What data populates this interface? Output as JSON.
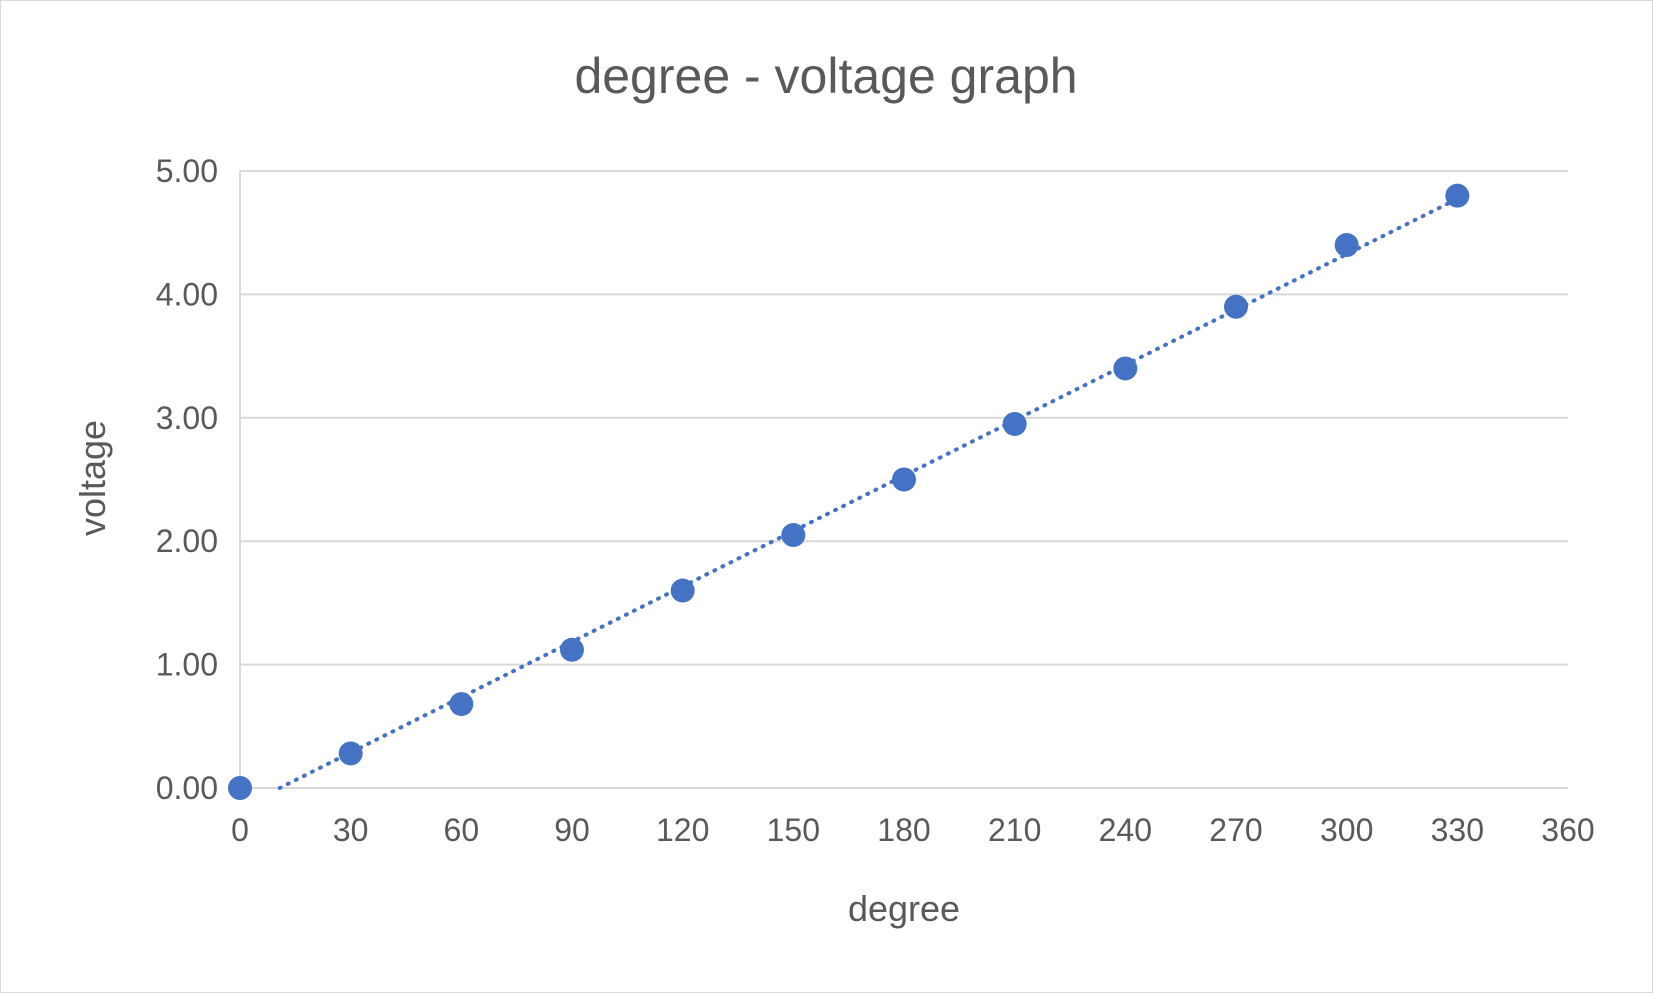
{
  "chart_data": {
    "type": "scatter",
    "title": "degree - voltage graph",
    "xlabel": "degree",
    "ylabel": "voltage",
    "xlim": [
      0,
      360
    ],
    "ylim": [
      0,
      5
    ],
    "x_ticks": [
      "0",
      "30",
      "60",
      "90",
      "120",
      "150",
      "180",
      "210",
      "240",
      "270",
      "300",
      "330",
      "360"
    ],
    "y_ticks": [
      "0.00",
      "1.00",
      "2.00",
      "3.00",
      "4.00",
      "5.00"
    ],
    "grid": "horizontal",
    "legend": "none",
    "series": [
      {
        "x": [
          0,
          30,
          60,
          90,
          120,
          150,
          180,
          210,
          240,
          270,
          300,
          330
        ],
        "y": [
          0.0,
          0.28,
          0.68,
          1.12,
          1.6,
          2.05,
          2.5,
          2.95,
          3.4,
          3.9,
          4.4,
          4.8
        ],
        "color": "#4472c4"
      }
    ],
    "trendline": {
      "type": "linear",
      "style": "dotted",
      "color": "#4472c4"
    }
  },
  "colors": {
    "marker": "#4472c4",
    "grid": "#d9d9d9",
    "text": "#595959",
    "border": "#d9d9d9"
  }
}
